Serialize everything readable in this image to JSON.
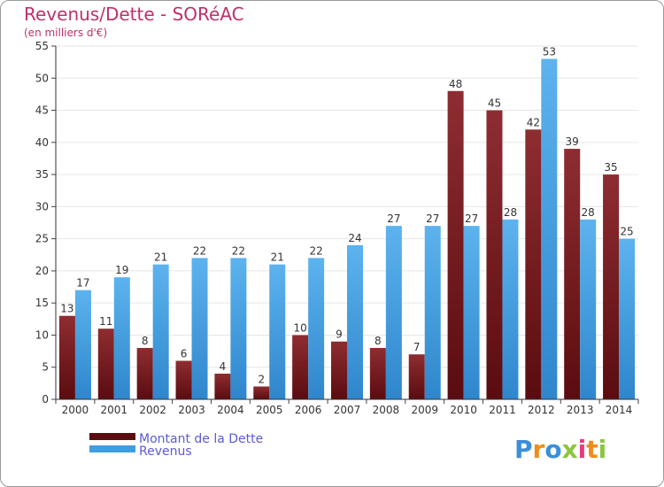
{
  "chart_data": {
    "type": "bar",
    "title": "Revenus/Dette - SORéAC",
    "subtitle": "(en milliers d'€)",
    "categories": [
      "2000",
      "2001",
      "2002",
      "2003",
      "2004",
      "2005",
      "2006",
      "2007",
      "2008",
      "2009",
      "2010",
      "2011",
      "2012",
      "2013",
      "2014"
    ],
    "series": [
      {
        "name": "Montant de la Dette",
        "color": "#7a1e22",
        "values": [
          13,
          11,
          8,
          6,
          4,
          2,
          10,
          9,
          8,
          7,
          48,
          45,
          42,
          39,
          35
        ]
      },
      {
        "name": "Revenus",
        "color": "#3f9ee0",
        "values": [
          17,
          19,
          21,
          22,
          22,
          21,
          22,
          24,
          27,
          27,
          27,
          28,
          53,
          28,
          25
        ]
      }
    ],
    "ylim": [
      0,
      55
    ],
    "ytick_step": 5,
    "grid": true,
    "legend_position": "bottom-left",
    "data_labels": true
  },
  "logo": {
    "text": "Proxiti"
  }
}
